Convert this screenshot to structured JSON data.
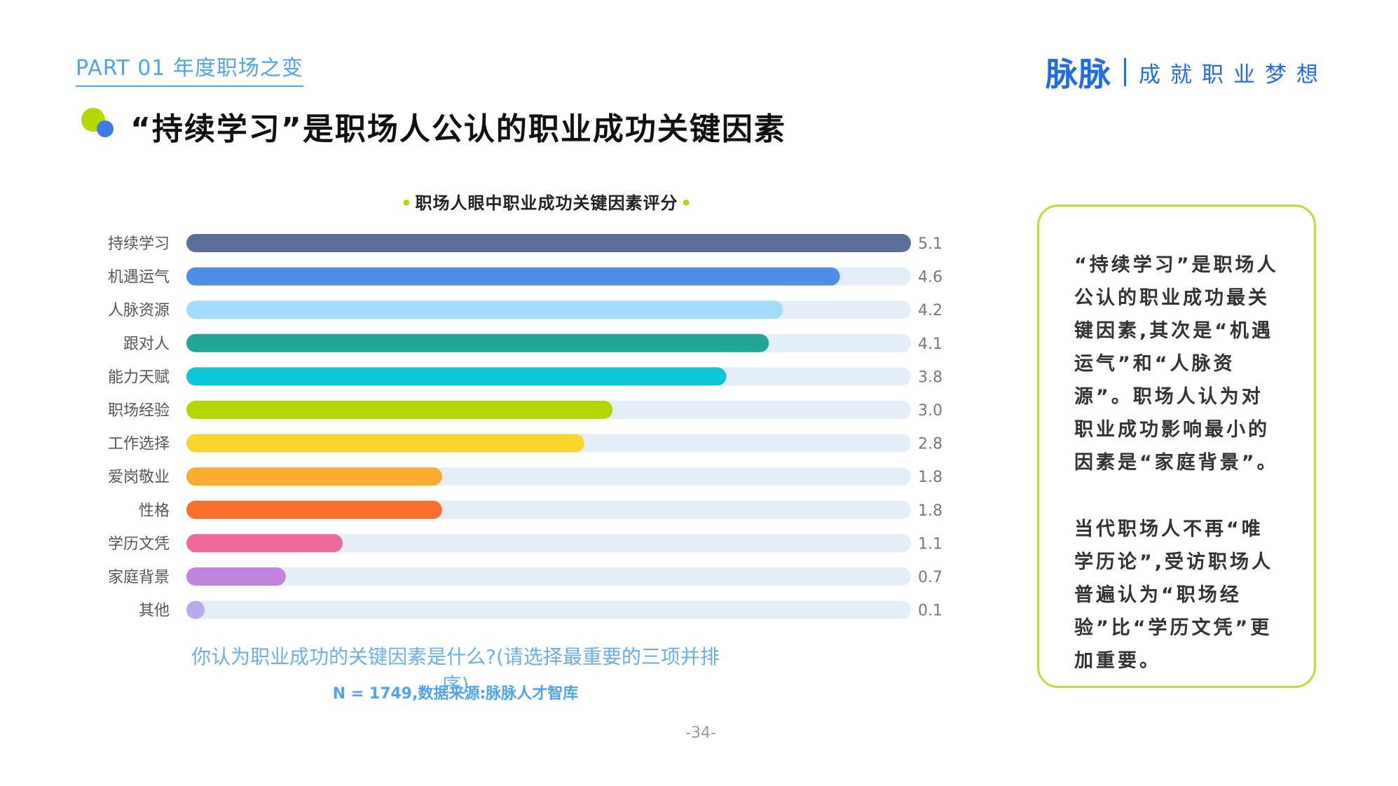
{
  "header": {
    "part_label": "PART 01 年度职场之变",
    "brand_logo": "脉脉",
    "brand_slogan": "成就职业梦想"
  },
  "page": {
    "title": "“持续学习”是职场人公认的职业成功关键因素",
    "page_number": "-34-"
  },
  "colors": {
    "track": "#e3eef9",
    "brand_blue": "#1f6ce6",
    "accent_green": "#b6d600"
  },
  "chart_data": {
    "type": "bar",
    "orientation": "horizontal",
    "title": "职场人眼中职业成功关键因素评分",
    "title_bullet": "•",
    "categories": [
      "持续学习",
      "机遇运气",
      "人脉资源",
      "跟对人",
      "能力天赋",
      "职场经验",
      "工作选择",
      "爱岗敬业",
      "性格",
      "学历文凭",
      "家庭背景",
      "其他"
    ],
    "values": [
      5.1,
      4.6,
      4.2,
      4.1,
      3.8,
      3.0,
      2.8,
      1.8,
      1.8,
      1.1,
      0.7,
      0.1
    ],
    "value_labels": [
      "5.1",
      "4.6",
      "4.2",
      "4.1",
      "3.8",
      "3.0",
      "2.8",
      "1.8",
      "1.8",
      "1.1",
      "0.7",
      "0.1"
    ],
    "bar_colors": [
      "#5b6f98",
      "#4e8ee6",
      "#a6dcfa",
      "#21a596",
      "#0bc5d8",
      "#b3d600",
      "#fad52e",
      "#fbab2e",
      "#f96f2d",
      "#ee6a9b",
      "#c282e0",
      "#b9a9ee"
    ],
    "xlim": [
      0,
      5.1
    ],
    "grid": false,
    "legend": "none",
    "question": "你认为职业成功的关键因素是什么?(请选择最重要的三项并排序)",
    "source": "N = 1749,数据来源:脉脉人才智库"
  },
  "summary": {
    "p1": "“持续学习”是职场人公认的职业成功最关键因素,其次是“机遇运气”和“人脉资源”。职场人认为对职业成功影响最小的因素是“家庭背景”。",
    "p2": "当代职场人不再“唯学历论”,受访职场人普遍认为“职场经验”比“学历文凭”更加重要。"
  }
}
